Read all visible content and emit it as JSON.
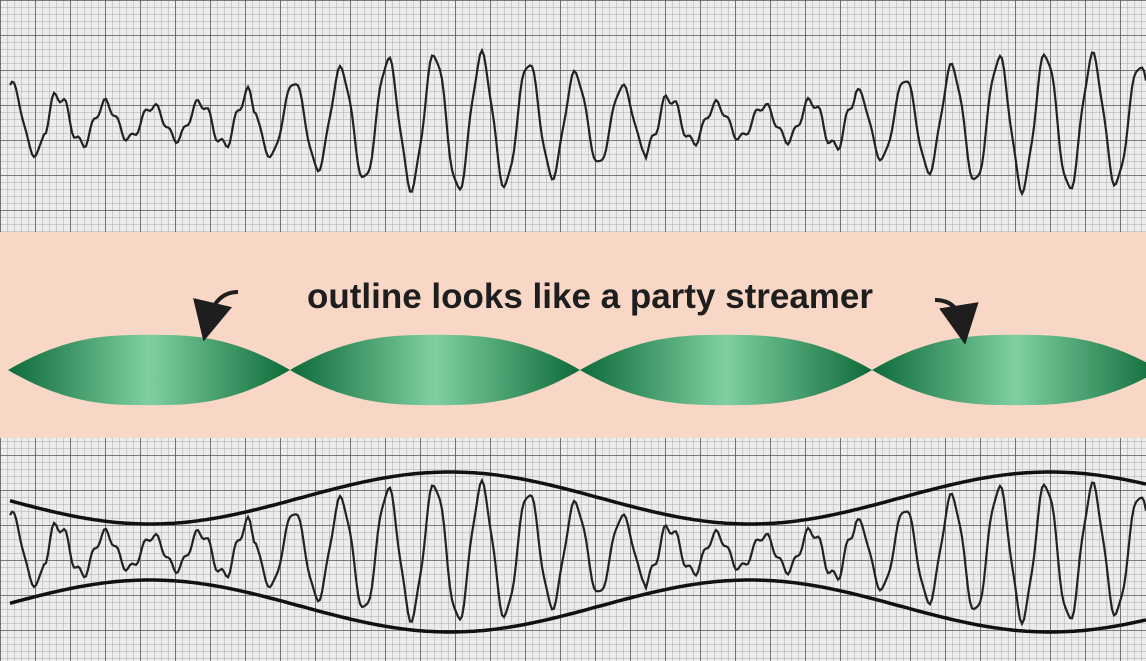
{
  "caption": "outline looks like a party streamer"
}
